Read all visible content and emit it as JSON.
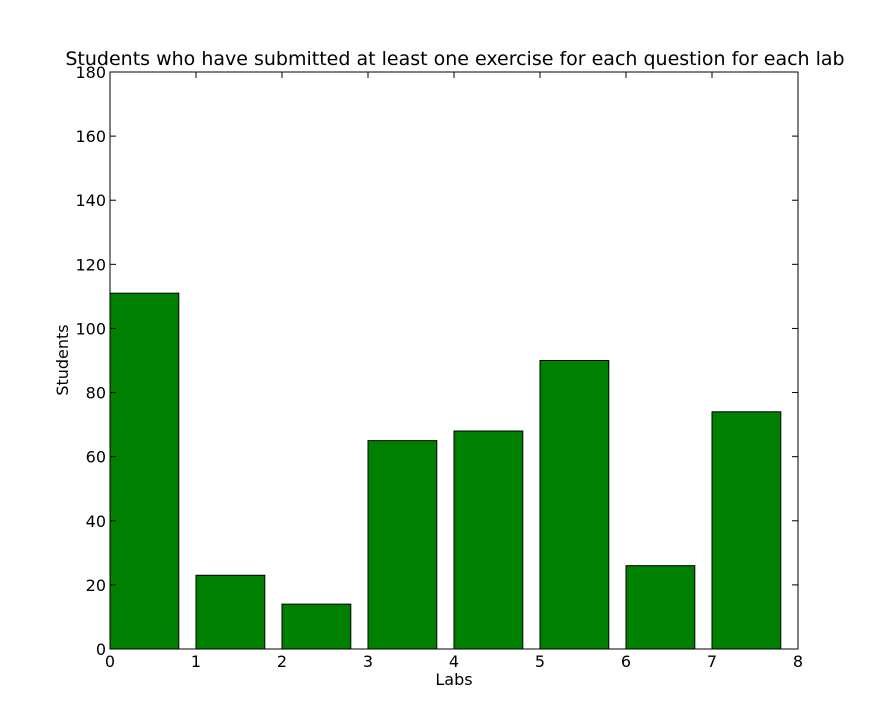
{
  "chart_data": {
    "type": "bar",
    "title": "Students who have submitted at least one exercise for each question for each lab",
    "xlabel": "Labs",
    "ylabel": "Students",
    "x": [
      0,
      1,
      2,
      3,
      4,
      5,
      6,
      7
    ],
    "values": [
      111,
      23,
      14,
      65,
      68,
      90,
      26,
      74
    ],
    "bar_width": 0.8,
    "xlim": [
      0,
      8
    ],
    "ylim": [
      0,
      180
    ],
    "xticks": [
      0,
      1,
      2,
      3,
      4,
      5,
      6,
      7,
      8
    ],
    "yticks": [
      0,
      20,
      40,
      60,
      80,
      100,
      120,
      140,
      160,
      180
    ],
    "grid": false,
    "legend": "none",
    "bar_color": "#008000",
    "edge_color": "#000000"
  }
}
